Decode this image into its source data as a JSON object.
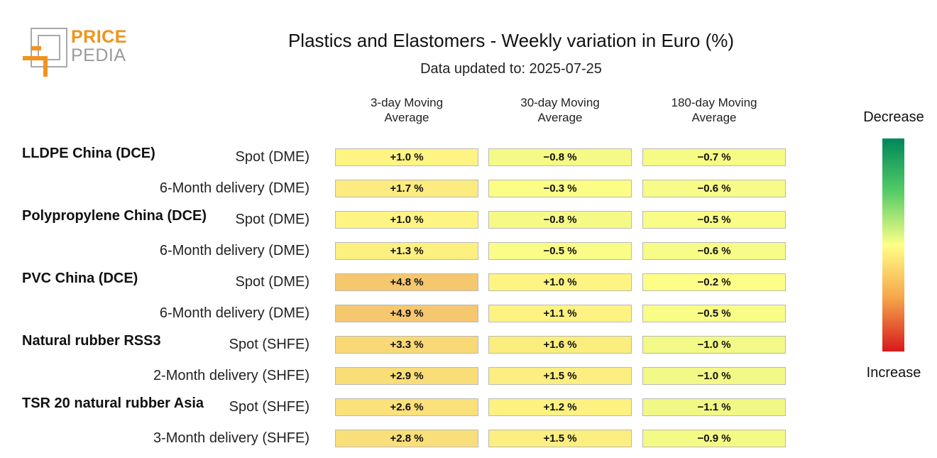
{
  "logo": {
    "line1": "PRICE",
    "line2": "PEDIA"
  },
  "chart_data": {
    "type": "heatmap",
    "title": "Plastics and Elastomers - Weekly variation in Euro (%)",
    "subtitle": "Data updated to: 2025-07-25",
    "columns": [
      "3-day Moving Average",
      "30-day Moving Average",
      "180-day Moving Average"
    ],
    "column_lines": [
      [
        "3-day Moving",
        "Average"
      ],
      [
        "30-day Moving",
        "Average"
      ],
      [
        "180-day Moving",
        "Average"
      ]
    ],
    "unit": "%",
    "groups": [
      {
        "name": "LLDPE China (DCE)",
        "rows": [
          {
            "label": "Spot (DME)",
            "values": [
              1.0,
              -0.8,
              -0.7
            ]
          },
          {
            "label": "6-Month delivery (DME)",
            "values": [
              1.7,
              -0.3,
              -0.6
            ]
          }
        ]
      },
      {
        "name": "Polypropylene China (DCE)",
        "rows": [
          {
            "label": "Spot (DME)",
            "values": [
              1.0,
              -0.8,
              -0.5
            ]
          },
          {
            "label": "6-Month delivery (DME)",
            "values": [
              1.3,
              -0.5,
              -0.6
            ]
          }
        ]
      },
      {
        "name": "PVC China (DCE)",
        "rows": [
          {
            "label": "Spot (DME)",
            "values": [
              4.8,
              1.0,
              -0.2
            ]
          },
          {
            "label": "6-Month delivery (DME)",
            "values": [
              4.9,
              1.1,
              -0.5
            ]
          }
        ]
      },
      {
        "name": "Natural rubber RSS3",
        "rows": [
          {
            "label": "Spot (SHFE)",
            "values": [
              3.3,
              1.6,
              -1.0
            ]
          },
          {
            "label": "2-Month delivery (SHFE)",
            "values": [
              2.9,
              1.5,
              -1.0
            ]
          }
        ]
      },
      {
        "name": "TSR 20 natural rubber Asia",
        "rows": [
          {
            "label": "Spot (SHFE)",
            "values": [
              2.6,
              1.2,
              -1.1
            ]
          },
          {
            "label": "3-Month delivery (SHFE)",
            "values": [
              2.8,
              1.5,
              -0.9
            ]
          }
        ]
      }
    ],
    "legend": {
      "top": "Decrease",
      "bottom": "Increase"
    },
    "colors": {
      "decrease": "#00875a",
      "neutral": "#ffff88",
      "increase": "#d7191c",
      "cell_border": "#b9b9b9"
    }
  }
}
